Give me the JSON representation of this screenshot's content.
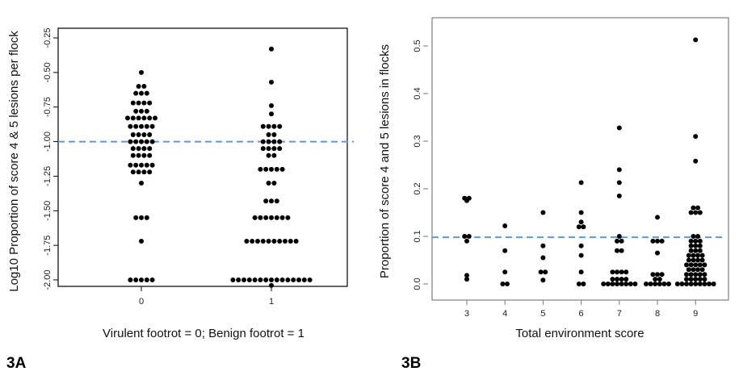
{
  "chart_data": [
    {
      "panel_label": "3A",
      "type": "scatter",
      "xlabel": "Virulent footrot = 0; Benign footrot = 1",
      "ylabel": "Log10 Proportion of score 4 & 5 lesions per flock",
      "categories": [
        "0",
        "1"
      ],
      "yticks": [
        "-2.00",
        "-1.75",
        "-1.50",
        "-1.25",
        "-1.00",
        "-0.75",
        "-0.50",
        "-0.25"
      ],
      "ylim": [
        -2.05,
        -0.2
      ],
      "reference_line": -1.0,
      "reference_color": "#5b9bd5",
      "points": [
        [
          0,
          -0.5
        ],
        [
          0,
          -0.6
        ],
        [
          0,
          -0.6
        ],
        [
          0,
          -0.65
        ],
        [
          0,
          -0.65
        ],
        [
          0,
          -0.65
        ],
        [
          0,
          -0.72
        ],
        [
          0,
          -0.72
        ],
        [
          0,
          -0.72
        ],
        [
          0,
          -0.72
        ],
        [
          0,
          -0.78
        ],
        [
          0,
          -0.78
        ],
        [
          0,
          -0.78
        ],
        [
          0,
          -0.83
        ],
        [
          0,
          -0.83
        ],
        [
          0,
          -0.83
        ],
        [
          0,
          -0.83
        ],
        [
          0,
          -0.83
        ],
        [
          0,
          -0.83
        ],
        [
          0,
          -0.89
        ],
        [
          0,
          -0.89
        ],
        [
          0,
          -0.89
        ],
        [
          0,
          -0.89
        ],
        [
          0,
          -0.89
        ],
        [
          0,
          -0.95
        ],
        [
          0,
          -0.95
        ],
        [
          0,
          -0.95
        ],
        [
          0,
          -0.95
        ],
        [
          0,
          -1.0
        ],
        [
          0,
          -1.0
        ],
        [
          0,
          -1.0
        ],
        [
          0,
          -1.0
        ],
        [
          0,
          -1.0
        ],
        [
          0,
          -1.05
        ],
        [
          0,
          -1.05
        ],
        [
          0,
          -1.05
        ],
        [
          0,
          -1.05
        ],
        [
          0,
          -1.1
        ],
        [
          0,
          -1.1
        ],
        [
          0,
          -1.1
        ],
        [
          0,
          -1.1
        ],
        [
          0,
          -1.17
        ],
        [
          0,
          -1.17
        ],
        [
          0,
          -1.17
        ],
        [
          0,
          -1.17
        ],
        [
          0,
          -1.17
        ],
        [
          0,
          -1.22
        ],
        [
          0,
          -1.22
        ],
        [
          0,
          -1.22
        ],
        [
          0,
          -1.22
        ],
        [
          0,
          -1.3
        ],
        [
          0,
          -1.55
        ],
        [
          0,
          -1.55
        ],
        [
          0,
          -1.55
        ],
        [
          0,
          -1.72
        ],
        [
          0,
          -2.0
        ],
        [
          0,
          -2.0
        ],
        [
          0,
          -2.0
        ],
        [
          0,
          -2.0
        ],
        [
          0,
          -2.0
        ],
        [
          1,
          -0.33
        ],
        [
          1,
          -0.57
        ],
        [
          1,
          -0.74
        ],
        [
          1,
          -0.8
        ],
        [
          1,
          -0.89
        ],
        [
          1,
          -0.89
        ],
        [
          1,
          -0.89
        ],
        [
          1,
          -0.89
        ],
        [
          1,
          -0.95
        ],
        [
          1,
          -0.95
        ],
        [
          1,
          -1.0
        ],
        [
          1,
          -1.0
        ],
        [
          1,
          -1.0
        ],
        [
          1,
          -1.0
        ],
        [
          1,
          -1.05
        ],
        [
          1,
          -1.05
        ],
        [
          1,
          -1.05
        ],
        [
          1,
          -1.05
        ],
        [
          1,
          -1.1
        ],
        [
          1,
          -1.1
        ],
        [
          1,
          -1.2
        ],
        [
          1,
          -1.2
        ],
        [
          1,
          -1.2
        ],
        [
          1,
          -1.2
        ],
        [
          1,
          -1.2
        ],
        [
          1,
          -1.3
        ],
        [
          1,
          -1.3
        ],
        [
          1,
          -1.43
        ],
        [
          1,
          -1.43
        ],
        [
          1,
          -1.43
        ],
        [
          1,
          -1.55
        ],
        [
          1,
          -1.55
        ],
        [
          1,
          -1.55
        ],
        [
          1,
          -1.55
        ],
        [
          1,
          -1.55
        ],
        [
          1,
          -1.55
        ],
        [
          1,
          -1.55
        ],
        [
          1,
          -1.72
        ],
        [
          1,
          -1.72
        ],
        [
          1,
          -1.72
        ],
        [
          1,
          -1.72
        ],
        [
          1,
          -1.72
        ],
        [
          1,
          -1.72
        ],
        [
          1,
          -1.72
        ],
        [
          1,
          -1.72
        ],
        [
          1,
          -1.72
        ],
        [
          1,
          -1.72
        ],
        [
          1,
          -2.0
        ],
        [
          1,
          -2.0
        ],
        [
          1,
          -2.0
        ],
        [
          1,
          -2.0
        ],
        [
          1,
          -2.0
        ],
        [
          1,
          -2.0
        ],
        [
          1,
          -2.0
        ],
        [
          1,
          -2.0
        ],
        [
          1,
          -2.0
        ],
        [
          1,
          -2.0
        ],
        [
          1,
          -2.0
        ],
        [
          1,
          -2.0
        ],
        [
          1,
          -2.0
        ],
        [
          1,
          -2.0
        ],
        [
          1,
          -2.0
        ],
        [
          1,
          -2.04
        ]
      ]
    },
    {
      "panel_label": "3B",
      "type": "scatter",
      "xlabel": "Total environment score",
      "ylabel": "Proportion of score 4 and 5 lesions in flocks",
      "categories": [
        "3",
        "4",
        "5",
        "6",
        "7",
        "8",
        "9"
      ],
      "yticks": [
        "0.0",
        "0.1",
        "0.2",
        "0.3",
        "0.4",
        "0.5"
      ],
      "ylim": [
        -0.02,
        0.53
      ],
      "reference_line": 0.098,
      "reference_color": "#5b9bd5",
      "points": [
        [
          3,
          0.18
        ],
        [
          3,
          0.18
        ],
        [
          3,
          0.175
        ],
        [
          3,
          0.1
        ],
        [
          3,
          0.1
        ],
        [
          3,
          0.09
        ],
        [
          3,
          0.018
        ],
        [
          3,
          0.01
        ],
        [
          4,
          0.122
        ],
        [
          4,
          0.07
        ],
        [
          4,
          0.025
        ],
        [
          4,
          0.0
        ],
        [
          4,
          0.0
        ],
        [
          5,
          0.15
        ],
        [
          5,
          0.08
        ],
        [
          5,
          0.055
        ],
        [
          5,
          0.025
        ],
        [
          5,
          0.025
        ],
        [
          5,
          0.008
        ],
        [
          6,
          0.213
        ],
        [
          6,
          0.15
        ],
        [
          6,
          0.13
        ],
        [
          6,
          0.12
        ],
        [
          6,
          0.12
        ],
        [
          6,
          0.08
        ],
        [
          6,
          0.06
        ],
        [
          6,
          0.025
        ],
        [
          6,
          0.0
        ],
        [
          6,
          0.0
        ],
        [
          7,
          0.328
        ],
        [
          7,
          0.24
        ],
        [
          7,
          0.213
        ],
        [
          7,
          0.185
        ],
        [
          7,
          0.1
        ],
        [
          7,
          0.09
        ],
        [
          7,
          0.09
        ],
        [
          7,
          0.07
        ],
        [
          7,
          0.07
        ],
        [
          7,
          0.025
        ],
        [
          7,
          0.025
        ],
        [
          7,
          0.025
        ],
        [
          7,
          0.025
        ],
        [
          7,
          0.01
        ],
        [
          7,
          0.01
        ],
        [
          7,
          0.01
        ],
        [
          7,
          0.01
        ],
        [
          7,
          0.0
        ],
        [
          7,
          0.0
        ],
        [
          7,
          0.0
        ],
        [
          7,
          0.0
        ],
        [
          7,
          0.0
        ],
        [
          7,
          0.0
        ],
        [
          7,
          0.0
        ],
        [
          7,
          0.0
        ],
        [
          8,
          0.14
        ],
        [
          8,
          0.09
        ],
        [
          8,
          0.09
        ],
        [
          8,
          0.09
        ],
        [
          8,
          0.065
        ],
        [
          8,
          0.02
        ],
        [
          8,
          0.02
        ],
        [
          8,
          0.02
        ],
        [
          8,
          0.01
        ],
        [
          8,
          0.01
        ],
        [
          8,
          0.0
        ],
        [
          8,
          0.0
        ],
        [
          8,
          0.0
        ],
        [
          8,
          0.0
        ],
        [
          8,
          0.0
        ],
        [
          8,
          0.0
        ],
        [
          9,
          0.513
        ],
        [
          9,
          0.31
        ],
        [
          9,
          0.258
        ],
        [
          9,
          0.16
        ],
        [
          9,
          0.16
        ],
        [
          9,
          0.15
        ],
        [
          9,
          0.15
        ],
        [
          9,
          0.15
        ],
        [
          9,
          0.1
        ],
        [
          9,
          0.1
        ],
        [
          9,
          0.09
        ],
        [
          9,
          0.09
        ],
        [
          9,
          0.09
        ],
        [
          9,
          0.08
        ],
        [
          9,
          0.08
        ],
        [
          9,
          0.08
        ],
        [
          9,
          0.07
        ],
        [
          9,
          0.07
        ],
        [
          9,
          0.07
        ],
        [
          9,
          0.06
        ],
        [
          9,
          0.06
        ],
        [
          9,
          0.06
        ],
        [
          9,
          0.06
        ],
        [
          9,
          0.05
        ],
        [
          9,
          0.05
        ],
        [
          9,
          0.05
        ],
        [
          9,
          0.05
        ],
        [
          9,
          0.04
        ],
        [
          9,
          0.04
        ],
        [
          9,
          0.04
        ],
        [
          9,
          0.04
        ],
        [
          9,
          0.04
        ],
        [
          9,
          0.03
        ],
        [
          9,
          0.03
        ],
        [
          9,
          0.03
        ],
        [
          9,
          0.03
        ],
        [
          9,
          0.02
        ],
        [
          9,
          0.02
        ],
        [
          9,
          0.02
        ],
        [
          9,
          0.02
        ],
        [
          9,
          0.02
        ],
        [
          9,
          0.01
        ],
        [
          9,
          0.01
        ],
        [
          9,
          0.01
        ],
        [
          9,
          0.01
        ],
        [
          9,
          0.01
        ],
        [
          9,
          0.0
        ],
        [
          9,
          0.0
        ],
        [
          9,
          0.0
        ],
        [
          9,
          0.0
        ],
        [
          9,
          0.0
        ],
        [
          9,
          0.0
        ],
        [
          9,
          0.0
        ],
        [
          9,
          0.0
        ],
        [
          9,
          0.0
        ]
      ]
    }
  ]
}
